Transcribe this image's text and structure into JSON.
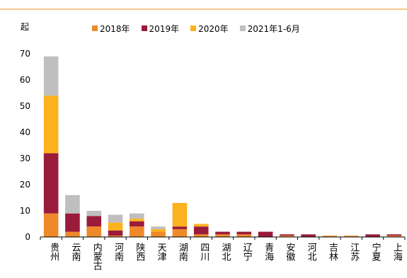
{
  "header_caption": "",
  "chart_data": {
    "type": "bar",
    "stacked": true,
    "y_unit": "起",
    "categories": [
      "贵州",
      "云南",
      "内蒙古",
      "河南",
      "陕西",
      "天津",
      "湖南",
      "四川",
      "湖北",
      "辽宁",
      "青海",
      "安徽",
      "河北",
      "吉林",
      "江苏",
      "宁夏",
      "上海"
    ],
    "series": [
      {
        "name": "2018年",
        "color": "#ee8a2a",
        "values": [
          9,
          2,
          4,
          0.5,
          4,
          2,
          3,
          1,
          1,
          1,
          0,
          0.5,
          0,
          0.5,
          0.5,
          0,
          0.5
        ]
      },
      {
        "name": "2019年",
        "color": "#9b1b3a",
        "values": [
          23,
          7,
          4,
          2,
          2,
          0,
          1,
          3,
          1,
          1,
          2,
          0.5,
          1,
          0,
          0,
          1,
          0.5
        ]
      },
      {
        "name": "2020年",
        "color": "#fcb21d",
        "values": [
          22,
          0,
          0,
          3,
          1,
          1,
          9,
          1,
          0,
          0,
          0,
          0,
          0,
          0,
          0,
          0,
          0
        ]
      },
      {
        "name": "2021年1-6月",
        "color": "#bfbfbf",
        "values": [
          15,
          7,
          2,
          3,
          2,
          1,
          0,
          0,
          0,
          0,
          0,
          0,
          0,
          0,
          0,
          0,
          0
        ]
      }
    ],
    "ylim": [
      0,
      70
    ],
    "yticks": [
      0,
      10,
      20,
      30,
      40,
      50,
      60,
      70
    ],
    "legend_position": "top",
    "grid": false
  }
}
